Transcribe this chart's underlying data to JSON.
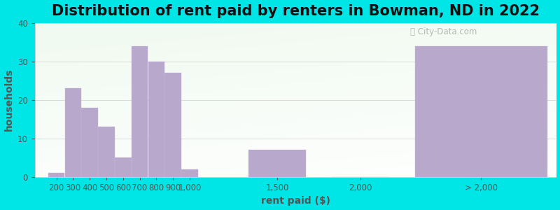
{
  "title": "Distribution of rent paid by renters in Bowman, ND in 2022",
  "xlabel": "rent paid ($)",
  "ylabel": "households",
  "bar_color": "#b8a8cc",
  "background_outer": "#00e5e5",
  "ylim": [
    0,
    40
  ],
  "yticks": [
    0,
    10,
    20,
    30,
    40
  ],
  "categories": [
    "200",
    "300",
    "400",
    "500",
    "600",
    "700",
    "800",
    "900",
    "1,000",
    "1,500",
    "2,000",
    "> 2,000"
  ],
  "values": [
    1,
    23,
    18,
    13,
    5,
    34,
    30,
    27,
    2,
    7,
    0,
    34
  ],
  "title_fontsize": 15,
  "axis_label_fontsize": 10,
  "tick_fontsize": 8.5,
  "grid_color": "#cccccc",
  "watermark": " City-Data.com"
}
